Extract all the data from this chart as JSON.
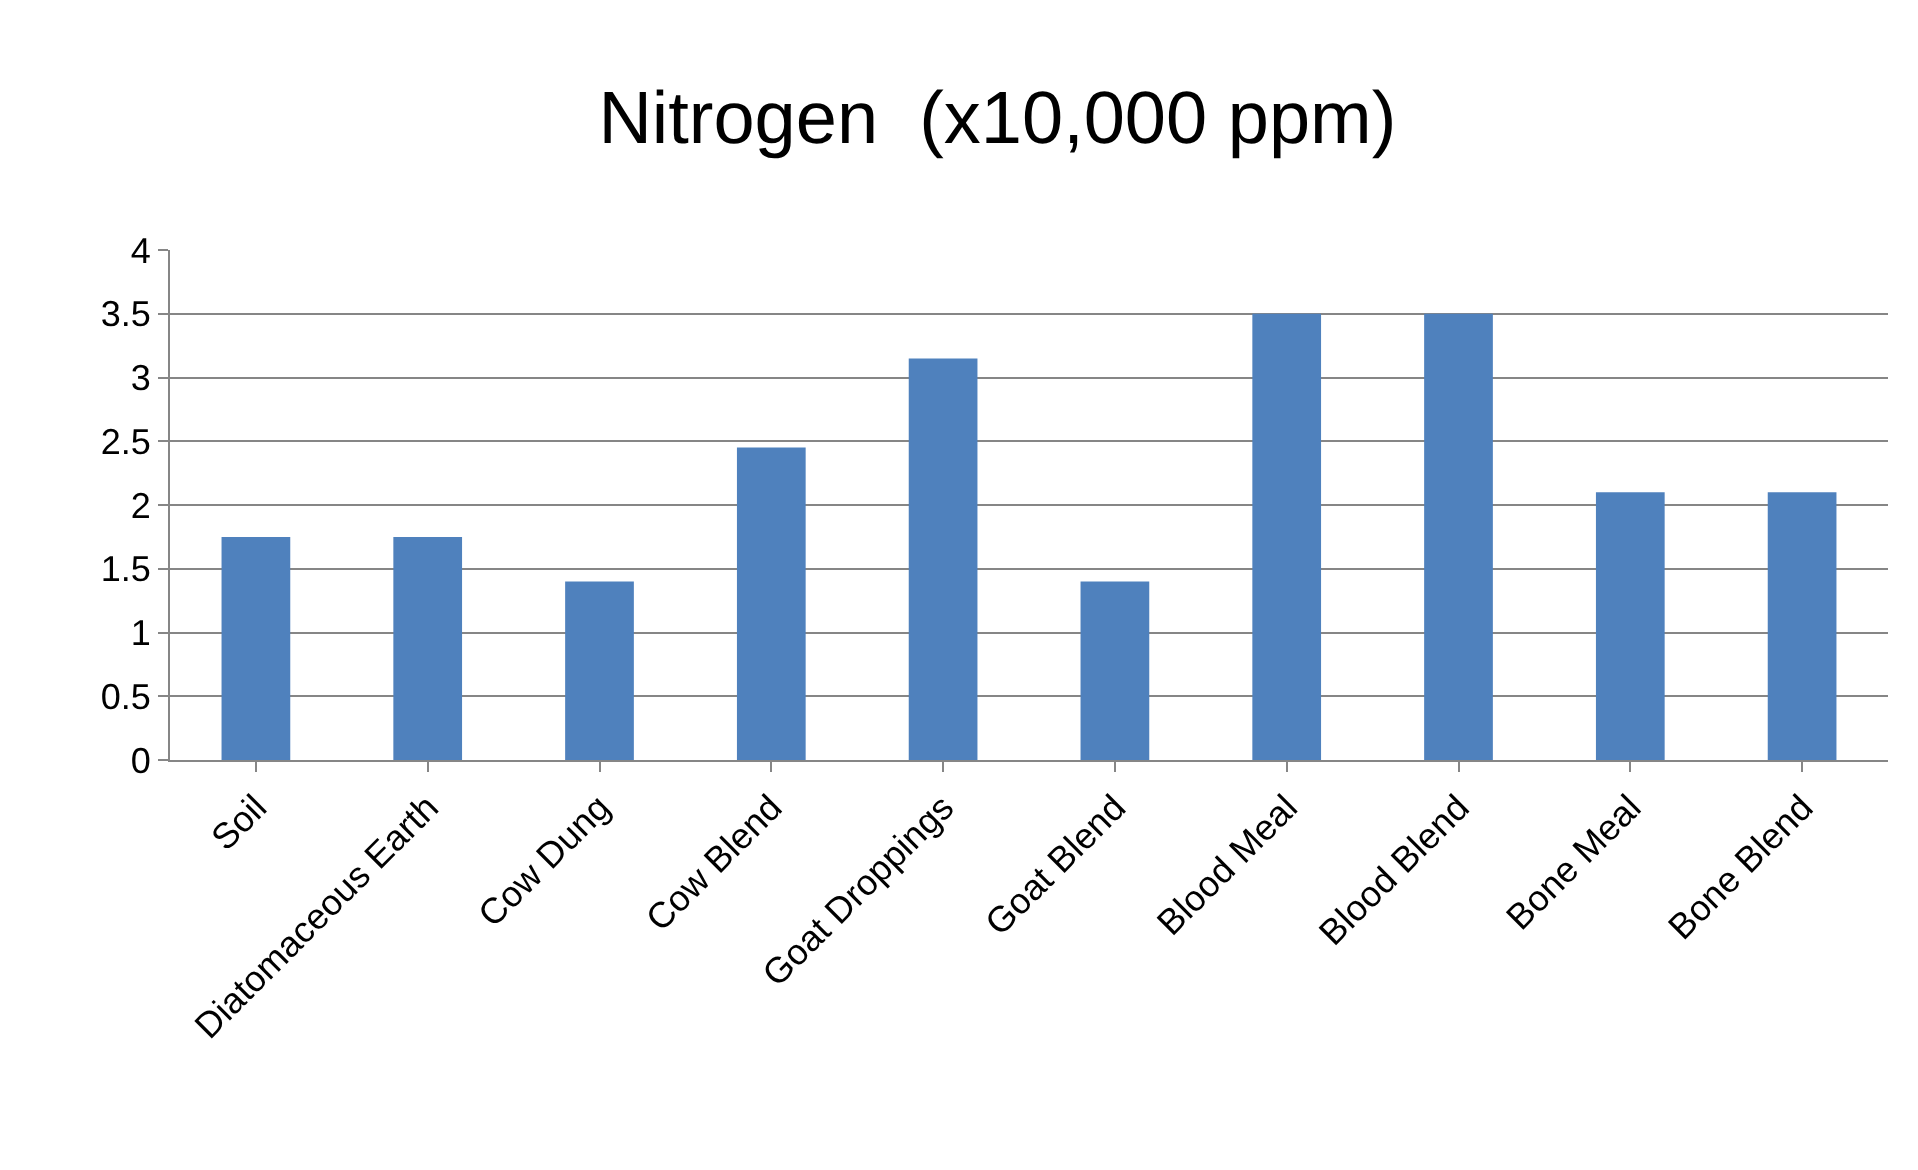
{
  "chart_data": {
    "type": "bar",
    "title": "Nitrogen  (x10,000 ppm)",
    "categories": [
      "Soil",
      "Diatomaceous Earth",
      "Cow Dung",
      "Cow Blend",
      "Goat Droppings",
      "Goat Blend",
      "Blood Meal",
      "Blood Blend",
      "Bone Meal",
      "Bone Blend"
    ],
    "values": [
      1.75,
      1.75,
      1.4,
      2.45,
      3.15,
      1.4,
      3.5,
      3.5,
      2.1,
      2.1
    ],
    "color": "#4f81bd",
    "ylim": [
      0,
      4
    ],
    "yticks": [
      0,
      0.5,
      1,
      1.5,
      2,
      2.5,
      3,
      3.5,
      4
    ],
    "grid": "y",
    "legend": false
  }
}
